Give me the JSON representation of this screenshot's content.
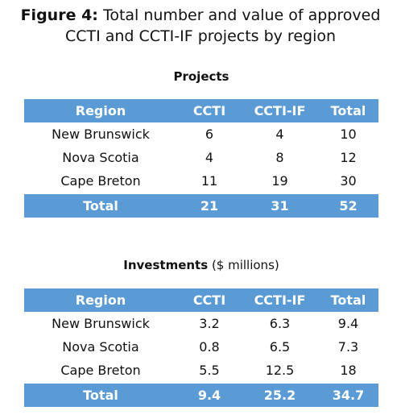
{
  "title": {
    "label": "Figure 4:",
    "text": "Total number and value of approved CCTI and CCTI-IF projects by region"
  },
  "tables": [
    {
      "heading": "Projects",
      "columns": [
        "Region",
        "CCTI",
        "CCTI-IF",
        "Total"
      ],
      "rows": [
        [
          "New Brunswick",
          6,
          4,
          10
        ],
        [
          "Nova Scotia",
          4,
          8,
          12
        ],
        [
          "Cape Breton",
          11,
          19,
          30
        ]
      ],
      "total": [
        "Total",
        21,
        31,
        52
      ]
    },
    {
      "heading": "Investments",
      "unit": "($ millions)",
      "columns": [
        "Region",
        "CCTI",
        "CCTI-IF",
        "Total"
      ],
      "rows": [
        [
          "New Brunswick",
          3.2,
          6.3,
          9.4
        ],
        [
          "Nova Scotia",
          0.8,
          6.5,
          7.3
        ],
        [
          "Cape Breton",
          5.5,
          12.5,
          18
        ]
      ],
      "total": [
        "Total",
        9.4,
        25.2,
        34.7
      ]
    }
  ]
}
